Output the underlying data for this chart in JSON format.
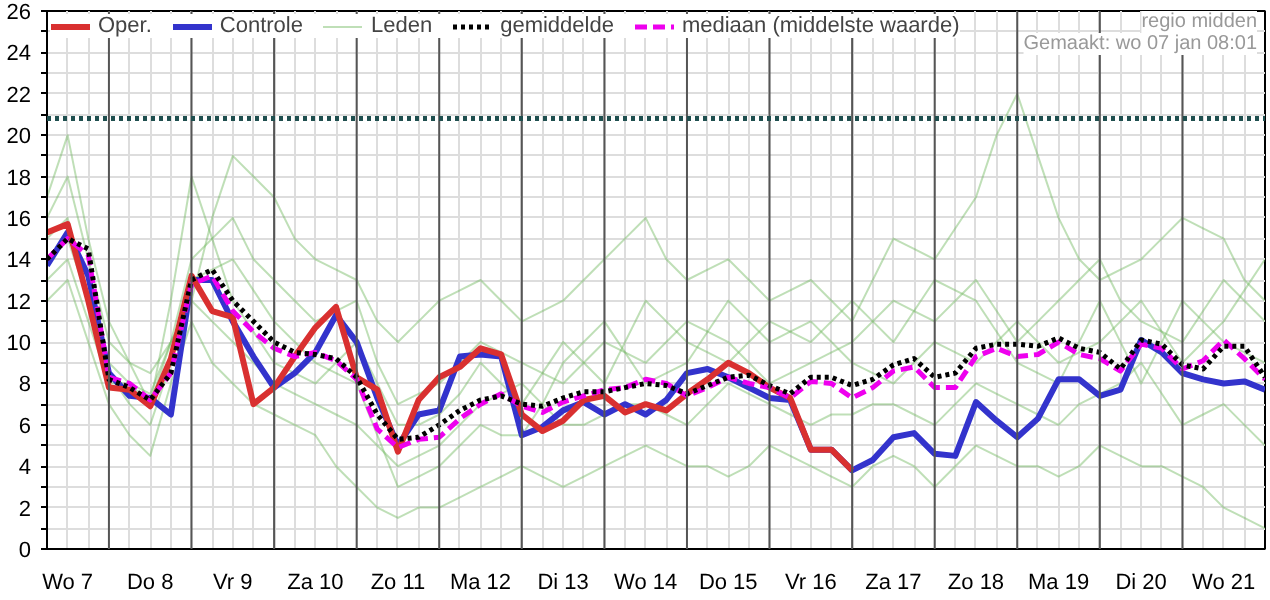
{
  "chart_data": {
    "type": "line",
    "annotations": [
      "regio midden",
      "Gemaakt: wo 07 jan 08:01"
    ],
    "categories": [
      null,
      "Wo 7",
      null,
      null,
      null,
      "Do 8",
      null,
      null,
      null,
      "Vr 9",
      null,
      null,
      null,
      "Za 10",
      null,
      null,
      null,
      "Zo 11",
      null,
      null,
      null,
      "Ma 12",
      null,
      null,
      null,
      "Di 13",
      null,
      null,
      null,
      "Wo 14",
      null,
      null,
      null,
      "Do 15",
      null,
      null,
      null,
      "Vr 16",
      null,
      null,
      null,
      "Za 17",
      null,
      null,
      null,
      "Zo 18",
      null,
      null,
      null,
      "Ma 19",
      null,
      null,
      null,
      "Di 20",
      null,
      null,
      null,
      "Wo 21",
      null,
      null
    ],
    "ylim": [
      0,
      26
    ],
    "yticks": [
      0,
      {
        "value": 1,
        "label": null
      },
      2,
      {
        "value": 3,
        "label": null
      },
      4,
      {
        "value": 5,
        "label": null
      },
      6,
      {
        "value": 7,
        "label": null
      },
      8,
      {
        "value": 9,
        "label": null
      },
      10,
      {
        "value": 11,
        "label": null
      },
      12,
      {
        "value": 13,
        "label": null
      },
      14,
      {
        "value": 15,
        "label": null
      },
      16,
      {
        "value": 17,
        "label": null
      },
      18,
      {
        "value": 19,
        "label": null
      },
      20,
      {
        "value": 21,
        "label": null
      },
      22,
      {
        "value": 23,
        "label": null
      },
      24,
      {
        "value": 25,
        "label": null
      },
      26
    ],
    "grid": true,
    "legend": "top",
    "marker": "none",
    "ref_lines": [
      {
        "axis": "y",
        "value": 20.8,
        "color": "#1f4f4f",
        "line_style": "dotted"
      }
    ],
    "series": [
      {
        "name": "Oper.",
        "color": "#d93030",
        "line_style": "solid",
        "values": [
          15.3,
          15.7,
          12,
          7.8,
          7.7,
          6.9,
          9.2,
          13.2,
          11.5,
          11.2,
          7.0,
          7.8,
          9.3,
          10.7,
          11.7,
          8.3,
          7.7,
          4.7,
          7.2,
          8.3,
          8.8,
          9.7,
          9.4,
          6.5,
          5.7,
          6.2,
          7.2,
          7.4,
          6.6,
          7.0,
          6.7,
          7.5,
          8.2,
          9.0,
          8.5,
          7.8,
          7.3,
          4.8,
          4.8,
          3.8,
          null,
          null,
          null,
          null,
          null,
          null,
          null,
          null,
          null,
          null,
          null,
          null,
          null,
          null,
          null,
          null,
          null,
          null,
          null,
          null
        ]
      },
      {
        "name": "Controle",
        "color": "#3333cc",
        "line_style": "solid",
        "values": [
          13.7,
          15.3,
          13.2,
          8.5,
          7.4,
          7.3,
          6.5,
          13.0,
          13.0,
          11.0,
          9.3,
          7.8,
          8.5,
          9.5,
          11.3,
          10.0,
          7.3,
          5.0,
          6.5,
          6.7,
          9.3,
          9.4,
          9.3,
          5.5,
          5.9,
          6.7,
          7.1,
          6.5,
          7.0,
          6.5,
          7.2,
          8.5,
          8.7,
          8.3,
          7.8,
          7.3,
          7.2,
          4.8,
          4.8,
          3.8,
          4.3,
          5.4,
          5.6,
          4.6,
          4.5,
          7.1,
          6.2,
          5.4,
          6.3,
          8.2,
          8.2,
          7.4,
          7.7,
          10.1,
          9.5,
          8.5,
          8.2,
          8.0,
          8.1,
          7.7
        ]
      },
      {
        "name": "Leden",
        "color": "#70b860",
        "line_style": "solid",
        "values": [
          16,
          18,
          14,
          10,
          9,
          8.5,
          10,
          12,
          16,
          19,
          18,
          17,
          15,
          14,
          13.5,
          13,
          11,
          10,
          11,
          12,
          12.5,
          13,
          12,
          11,
          11.5,
          12,
          13,
          14,
          15,
          16,
          14,
          13,
          13.5,
          14,
          13,
          12,
          12.5,
          13,
          12,
          11,
          13,
          15,
          14.5,
          14,
          15.5,
          17,
          20,
          22,
          19,
          16,
          14,
          13,
          13.5,
          14,
          15,
          16,
          15.5,
          15,
          13,
          12
        ]
      },
      {
        "color": "#70b860",
        "line_style": "solid",
        "values": [
          12,
          13,
          10,
          7,
          5.5,
          4.5,
          8,
          11,
          9,
          8,
          7,
          6.5,
          6,
          5.5,
          4,
          3,
          2,
          1.5,
          2,
          2,
          2.5,
          3,
          3.5,
          4,
          3.5,
          3,
          3.5,
          4,
          4.5,
          5,
          4.5,
          4,
          4,
          3.5,
          4,
          5,
          4.5,
          4,
          3.5,
          3,
          4,
          4.5,
          4,
          3,
          4,
          5,
          4.5,
          4,
          4,
          3.5,
          4,
          5,
          4.5,
          4,
          4,
          3.5,
          3,
          2,
          1.5,
          1
        ]
      },
      {
        "color": "#70b860",
        "line_style": "solid",
        "values": [
          15,
          16,
          12,
          9,
          8,
          7,
          10,
          14,
          15,
          16,
          14,
          13,
          12,
          11,
          11.5,
          12,
          9,
          7,
          7.5,
          8,
          9,
          10,
          9.5,
          9,
          8.5,
          8,
          9,
          10,
          9.5,
          9,
          10,
          11,
          10.5,
          10,
          9,
          8,
          8.5,
          9,
          9.5,
          10,
          11,
          12,
          11.5,
          11,
          12,
          13,
          11.5,
          10,
          11,
          12,
          13,
          14,
          12,
          11,
          10.5,
          10,
          11.5,
          13,
          12,
          11
        ]
      },
      {
        "color": "#70b860",
        "line_style": "solid",
        "values": [
          13,
          14,
          11,
          8,
          8,
          7.5,
          10,
          12,
          11,
          10,
          9,
          8,
          7.5,
          7,
          6.5,
          6,
          5,
          4,
          4.5,
          5,
          6,
          7,
          7.5,
          8,
          7,
          6,
          6,
          6.5,
          7,
          7,
          6.5,
          6,
          7,
          8,
          7.5,
          7,
          6.5,
          6,
          6.5,
          6.5,
          7,
          7,
          6.5,
          6,
          7,
          8,
          7.5,
          7,
          6.5,
          6,
          7,
          7.5,
          8,
          9,
          7.5,
          6,
          6.5,
          7,
          6,
          5
        ]
      },
      {
        "color": "#70b860",
        "line_style": "solid",
        "values": [
          14,
          15,
          12,
          8.5,
          7,
          6,
          9,
          13,
          13.5,
          14,
          12.5,
          11,
          10,
          9,
          8.5,
          8,
          5.5,
          3,
          3.5,
          4,
          5,
          6,
          5.5,
          5.5,
          7,
          9,
          10,
          11,
          9.5,
          8,
          8.5,
          9,
          10.5,
          12,
          11,
          10,
          10.5,
          11,
          10,
          9,
          8.5,
          8,
          9,
          10,
          9.5,
          9,
          10,
          11,
          10,
          9,
          9.5,
          10,
          11,
          12,
          10.5,
          9,
          10,
          11,
          12.5,
          14
        ]
      },
      {
        "color": "#70b860",
        "line_style": "solid",
        "values": [
          17,
          20,
          15,
          11,
          9,
          7,
          12,
          18,
          15,
          12,
          10.5,
          9,
          8.5,
          8,
          9,
          10,
          8,
          6,
          6,
          6.5,
          7.5,
          9,
          8,
          7,
          8.5,
          10,
          9,
          8,
          10,
          12,
          11,
          10,
          9.5,
          9,
          10,
          11,
          10.5,
          10,
          11,
          12,
          11,
          10,
          11.5,
          13,
          12.5,
          12,
          10.5,
          9,
          8.5,
          8,
          10,
          12,
          10,
          8,
          10,
          12,
          11,
          10,
          9.5,
          9
        ]
      },
      {
        "name": "gemiddelde",
        "color": "#000000",
        "line_style": "dotted",
        "values": [
          14,
          15,
          14.5,
          8.2,
          7.8,
          7.2,
          8.5,
          13,
          13.5,
          12,
          11,
          10,
          9.5,
          9.4,
          9.2,
          8.3,
          6.5,
          5.3,
          5.4,
          6.0,
          6.7,
          7.2,
          7.4,
          7.0,
          6.9,
          7.3,
          7.6,
          7.6,
          7.8,
          8.0,
          7.9,
          7.5,
          7.9,
          8.3,
          8.4,
          7.9,
          7.5,
          8.3,
          8.3,
          7.9,
          8.2,
          8.9,
          9.2,
          8.3,
          8.5,
          9.7,
          9.9,
          9.9,
          9.8,
          10.2,
          9.7,
          9.5,
          8.7,
          10.1,
          9.9,
          8.9,
          8.7,
          9.8,
          9.8,
          8.3
        ]
      },
      {
        "name": "mediaan (middelste waarde)",
        "color": "#ee00ee",
        "line_style": "dashed",
        "values": [
          14,
          15,
          14.2,
          8.3,
          8,
          7.2,
          8.5,
          12.8,
          13.2,
          11.5,
          10.5,
          9.7,
          9.3,
          9.5,
          9.1,
          8.2,
          5.8,
          4.9,
          5.3,
          5.4,
          6.3,
          7.0,
          7.5,
          6.9,
          6.6,
          7.1,
          7.4,
          7.7,
          7.8,
          8.2,
          8.0,
          7.4,
          7.8,
          8.3,
          8.0,
          7.8,
          7.3,
          8.1,
          8.0,
          7.3,
          7.8,
          8.6,
          8.8,
          7.8,
          7.8,
          9.3,
          9.7,
          9.3,
          9.4,
          10.0,
          9.4,
          9.2,
          8.6,
          9.9,
          9.7,
          8.7,
          9.1,
          10.1,
          9.2,
          8.2
        ]
      }
    ]
  }
}
